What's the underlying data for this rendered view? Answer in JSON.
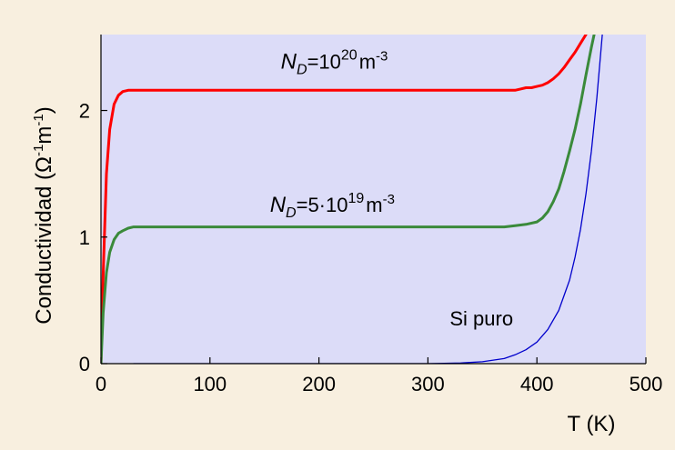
{
  "chart_data": {
    "type": "line",
    "xlabel": "T (K)",
    "ylabel_main": "Conductividad (",
    "ylabel_omega": "Ω",
    "ylabel_exp1": "-1",
    "ylabel_m": "m",
    "ylabel_exp2": "-1",
    "ylabel_close": ")",
    "xlim": [
      0,
      500
    ],
    "ylim": [
      0,
      2.6
    ],
    "xticks": [
      0,
      100,
      200,
      300,
      400,
      500
    ],
    "yticks": [
      0,
      1,
      2
    ],
    "grid": false,
    "colors": {
      "plot_background": "#dcdcf8",
      "page_background": "#f8efdf",
      "n1": "#ff0000",
      "n2": "#3a8a3a",
      "si": "#0000cc"
    },
    "series": [
      {
        "key": "n1",
        "x": [
          0,
          2,
          5,
          8,
          12,
          16,
          20,
          25,
          30,
          40,
          60,
          100,
          200,
          300,
          380,
          385,
          390,
          395,
          400,
          405,
          410,
          415,
          420,
          425,
          430,
          435,
          440,
          445
        ],
        "y": [
          0,
          0.7,
          1.5,
          1.85,
          2.05,
          2.12,
          2.15,
          2.16,
          2.16,
          2.16,
          2.16,
          2.16,
          2.16,
          2.16,
          2.16,
          2.17,
          2.18,
          2.18,
          2.19,
          2.2,
          2.22,
          2.25,
          2.29,
          2.34,
          2.4,
          2.46,
          2.53,
          2.6
        ]
      },
      {
        "key": "n2",
        "x": [
          0,
          2,
          5,
          8,
          12,
          16,
          20,
          25,
          30,
          40,
          60,
          100,
          200,
          300,
          370,
          380,
          390,
          400,
          405,
          410,
          415,
          420,
          425,
          430,
          435,
          440,
          445,
          450,
          455
        ],
        "y": [
          0,
          0.4,
          0.72,
          0.88,
          0.98,
          1.03,
          1.05,
          1.07,
          1.08,
          1.08,
          1.08,
          1.08,
          1.08,
          1.08,
          1.08,
          1.09,
          1.1,
          1.12,
          1.15,
          1.2,
          1.28,
          1.38,
          1.52,
          1.68,
          1.85,
          2.05,
          2.28,
          2.5,
          2.7
        ]
      },
      {
        "key": "si",
        "x": [
          30,
          100,
          200,
          300,
          330,
          350,
          370,
          380,
          390,
          400,
          410,
          420,
          430,
          435,
          440,
          445,
          450,
          455,
          460
        ],
        "y": [
          0,
          0,
          0,
          0,
          0.005,
          0.015,
          0.04,
          0.07,
          0.11,
          0.17,
          0.27,
          0.42,
          0.66,
          0.84,
          1.06,
          1.34,
          1.68,
          2.1,
          2.6
        ]
      }
    ],
    "annotations": [
      {
        "key": "n1",
        "italic": "N",
        "sub": "D",
        "main": "=10",
        "sup": "20",
        "unit": "m",
        "unit_sup": "-3",
        "x": 165,
        "y": 2.33
      },
      {
        "key": "n2",
        "italic": "N",
        "sub": "D",
        "main": "=5·10",
        "sup": "19",
        "unit": "m",
        "unit_sup": "-3",
        "x": 155,
        "y": 1.2
      },
      {
        "key": "si",
        "text": "Si puro",
        "x": 320,
        "y": 0.3
      }
    ]
  }
}
